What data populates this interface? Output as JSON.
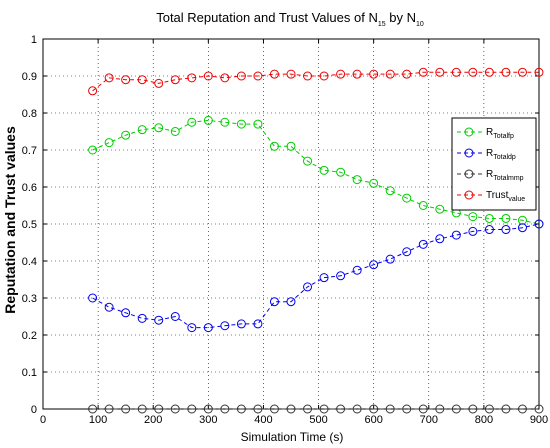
{
  "chart_data": {
    "type": "line",
    "title": {
      "main": "Total Reputation and Trust Values of N",
      "sub1": "15",
      "mid": " by N",
      "sub2": "10"
    },
    "xlabel": "Simulation Time (s)",
    "ylabel": "Reputation and Trust values",
    "xlim": [
      0,
      900
    ],
    "ylim": [
      0,
      1
    ],
    "xticks": [
      "0",
      "100",
      "200",
      "300",
      "400",
      "500",
      "600",
      "700",
      "800",
      "900"
    ],
    "yticks": [
      "0",
      "0.1",
      "0.2",
      "0.3",
      "0.4",
      "0.5",
      "0.6",
      "0.7",
      "0.8",
      "0.9",
      "1"
    ],
    "grid": true,
    "legend_position": "top-right",
    "x": [
      90,
      120,
      150,
      180,
      210,
      240,
      270,
      300,
      330,
      360,
      390,
      420,
      450,
      480,
      510,
      540,
      570,
      600,
      630,
      660,
      690,
      720,
      750,
      780,
      810,
      840,
      870,
      900
    ],
    "series": [
      {
        "key": "fp",
        "name": "R",
        "sub": "Totalfp",
        "color": "#00cc00",
        "values": [
          0.7,
          0.72,
          0.74,
          0.755,
          0.76,
          0.75,
          0.775,
          0.78,
          0.775,
          0.77,
          0.77,
          0.71,
          0.71,
          0.67,
          0.645,
          0.64,
          0.62,
          0.61,
          0.59,
          0.57,
          0.55,
          0.54,
          0.53,
          0.52,
          0.515,
          0.515,
          0.51,
          0.5
        ]
      },
      {
        "key": "dp",
        "name": "R",
        "sub": "Totaldp",
        "color": "#0000ee",
        "values": [
          0.3,
          0.275,
          0.26,
          0.245,
          0.24,
          0.25,
          0.22,
          0.22,
          0.225,
          0.23,
          0.23,
          0.29,
          0.29,
          0.33,
          0.355,
          0.36,
          0.375,
          0.39,
          0.405,
          0.425,
          0.445,
          0.46,
          0.47,
          0.48,
          0.485,
          0.485,
          0.49,
          0.5
        ]
      },
      {
        "key": "mmp",
        "name": "R",
        "sub": "Totalmmp",
        "color": "#333333",
        "values": [
          0,
          0,
          0,
          0,
          0,
          0,
          0,
          0,
          0,
          0,
          0,
          0,
          0,
          0,
          0,
          0,
          0,
          0,
          0,
          0,
          0,
          0,
          0,
          0,
          0,
          0,
          0,
          0
        ]
      },
      {
        "key": "trust",
        "name": "Trust",
        "sub": "value",
        "color": "#ee0000",
        "values": [
          0.86,
          0.895,
          0.89,
          0.89,
          0.88,
          0.89,
          0.895,
          0.9,
          0.895,
          0.9,
          0.9,
          0.905,
          0.905,
          0.9,
          0.9,
          0.905,
          0.905,
          0.905,
          0.905,
          0.905,
          0.91,
          0.91,
          0.91,
          0.91,
          0.91,
          0.91,
          0.91,
          0.91
        ]
      }
    ]
  }
}
